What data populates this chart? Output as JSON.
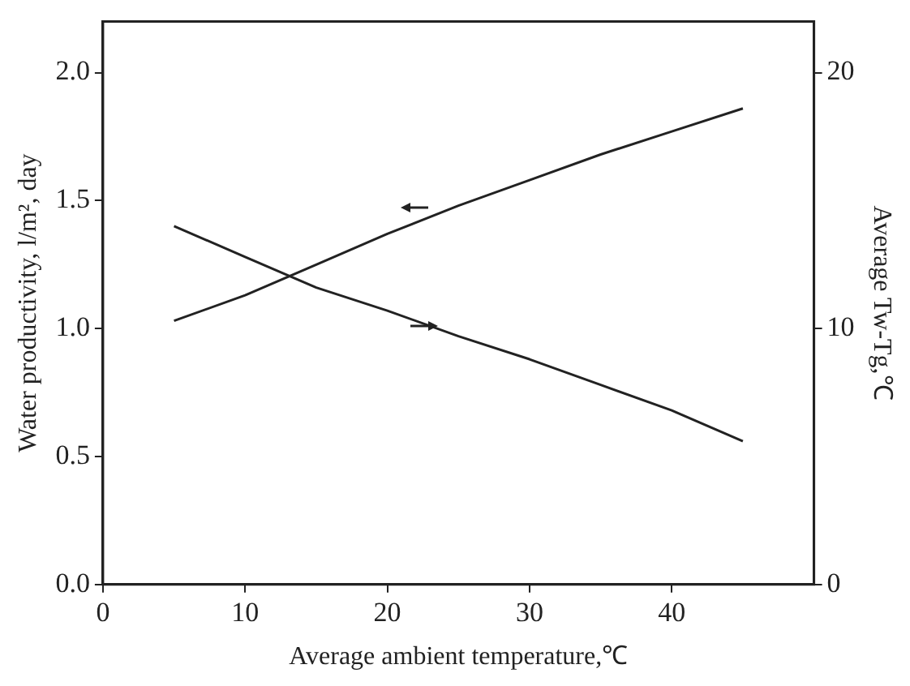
{
  "chart_data": {
    "type": "line",
    "xlabel": "Average ambient temperature,℃",
    "ylabel": "Water productivity, l/m², day",
    "y2label": "Average Tw-Tg,℃",
    "x": [
      5,
      10,
      15,
      20,
      25,
      30,
      35,
      40,
      45
    ],
    "series": [
      {
        "color": "#222222",
        "values": [
          1.03,
          1.13,
          1.25,
          1.37,
          1.48,
          1.58,
          1.68,
          1.77,
          1.86
        ]
      },
      {
        "color": "#222222",
        "axis": "y2",
        "values": [
          14.0,
          12.8,
          11.6,
          10.7,
          9.7,
          8.8,
          7.8,
          6.8,
          5.6
        ]
      }
    ],
    "xlim": [
      0,
      50
    ],
    "xticks": [
      0,
      10,
      20,
      30,
      40
    ],
    "ylim": [
      0,
      2.2
    ],
    "yticks": [
      {
        "value": 0,
        "label": "0.0"
      },
      {
        "value": 0.5,
        "label": "0.5"
      },
      {
        "value": 1,
        "label": "1.0"
      },
      {
        "value": 1.5,
        "label": "1.5"
      },
      {
        "value": 2,
        "label": "2.0"
      }
    ],
    "y2lim": [
      0,
      22
    ],
    "y2ticks": [
      0,
      10,
      20
    ],
    "grid": false,
    "legend": false,
    "marker": "none",
    "line_style": "solid"
  }
}
